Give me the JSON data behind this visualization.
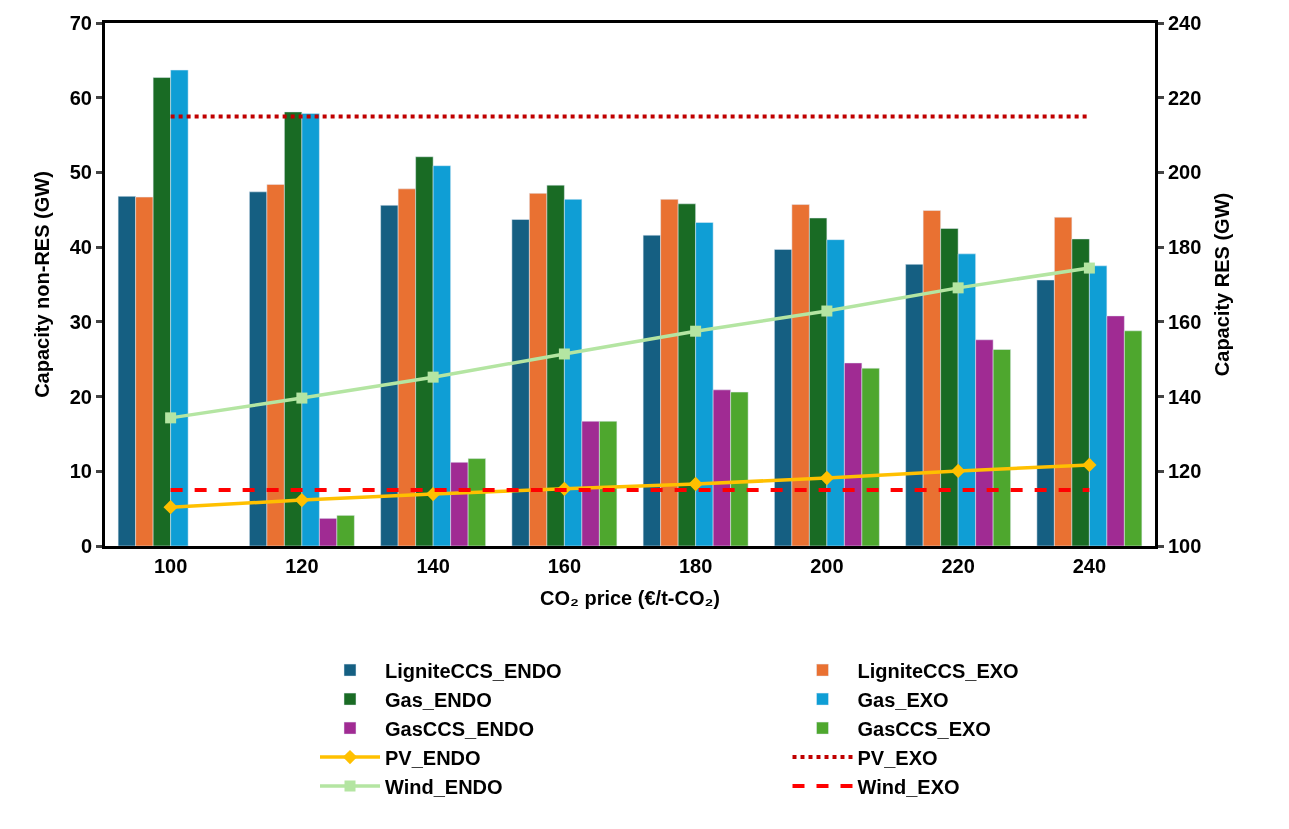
{
  "chart_data": {
    "type": "bar",
    "categories": [
      "100",
      "120",
      "140",
      "160",
      "180",
      "200",
      "220",
      "240"
    ],
    "xlabel": "CO₂ price (€/t-CO₂)",
    "ylabel": "Capacity non-RES (GW)",
    "y2label": "Capacity RES (GW)",
    "ylim": [
      0,
      70
    ],
    "yticks": [
      0,
      10,
      20,
      30,
      40,
      50,
      60,
      70
    ],
    "y2lim": [
      100,
      240
    ],
    "y2ticks": [
      100,
      120,
      140,
      160,
      180,
      200,
      220,
      240
    ],
    "legend": "bottom",
    "series": [
      {
        "name": "LigniteCCS_ENDO",
        "color": "#155f82",
        "values": [
          46.8,
          47.4,
          45.6,
          43.7,
          41.6,
          39.7,
          37.7,
          35.6
        ]
      },
      {
        "name": "LigniteCCS_EXO",
        "color": "#e97132",
        "values": [
          46.7,
          48.4,
          47.8,
          47.2,
          46.4,
          45.7,
          44.9,
          44.0
        ]
      },
      {
        "name": "Gas_ENDO",
        "color": "#196b24",
        "values": [
          62.7,
          58.1,
          52.1,
          48.3,
          45.8,
          43.9,
          42.5,
          41.1
        ]
      },
      {
        "name": "Gas_EXO",
        "color": "#0f9ed5",
        "values": [
          63.7,
          57.9,
          50.9,
          46.4,
          43.3,
          41.0,
          39.1,
          37.5
        ]
      },
      {
        "name": "GasCCS_ENDO",
        "color": "#a02b93",
        "values": [
          null,
          3.7,
          11.2,
          16.7,
          20.9,
          24.5,
          27.6,
          30.8
        ]
      },
      {
        "name": "GasCCS_EXO",
        "color": "#4ea72e",
        "values": [
          null,
          4.1,
          11.7,
          16.7,
          20.6,
          23.8,
          26.3,
          28.8
        ]
      },
      {
        "name": "PV_ENDO",
        "type": "line",
        "axis": "y2",
        "color": "#ffc000",
        "marker": "diamond",
        "line_style": "solid",
        "values": [
          110.4,
          112.3,
          113.9,
          115.3,
          116.6,
          118.2,
          120.1,
          121.7
        ]
      },
      {
        "name": "PV_EXO",
        "type": "line",
        "axis": "y2",
        "color": "#c00000",
        "marker": "none",
        "line_style": "dotted",
        "values": [
          215,
          215,
          215,
          215,
          215,
          215,
          215,
          215
        ]
      },
      {
        "name": "Wind_ENDO",
        "type": "line",
        "axis": "y2",
        "color": "#b4e5a2",
        "marker": "square",
        "line_style": "solid",
        "values": [
          134.3,
          139.6,
          145.2,
          151.4,
          157.5,
          162.9,
          169.1,
          174.4
        ]
      },
      {
        "name": "Wind_EXO",
        "type": "line",
        "axis": "y2",
        "color": "#ff0000",
        "marker": "none",
        "line_style": "dashed",
        "values": [
          115,
          115,
          115,
          115,
          115,
          115,
          115,
          115
        ]
      }
    ]
  }
}
